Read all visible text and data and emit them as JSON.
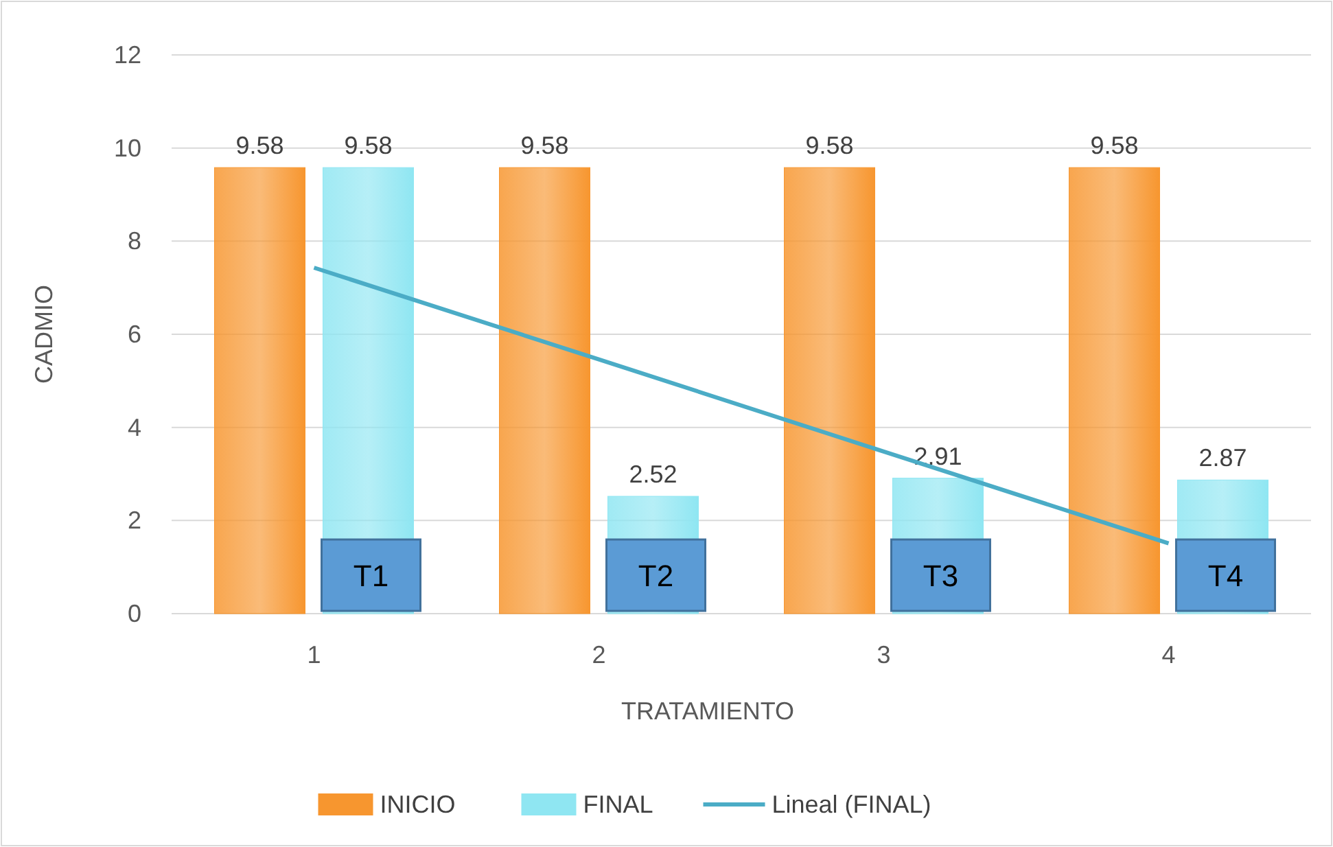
{
  "chart_data": {
    "type": "bar",
    "xlabel": "TRATAMIENTO",
    "ylabel": "CADMIO",
    "categories": [
      "1",
      "2",
      "3",
      "4"
    ],
    "series": [
      {
        "name": "INICIO",
        "color": "#f7962f",
        "values": [
          9.58,
          9.58,
          9.58,
          9.58
        ],
        "value_labels": [
          "9.58",
          "9.58",
          "9.58",
          "9.58"
        ]
      },
      {
        "name": "FINAL",
        "color": "#8fe6f2",
        "values": [
          9.58,
          2.52,
          2.91,
          2.87
        ],
        "value_labels": [
          "9.58",
          "2.52",
          "2.91",
          "2.87"
        ]
      },
      {
        "name": "Lineal (FINAL)",
        "type": "line",
        "color": "#4bacc6",
        "x": [
          "1",
          "2",
          "3",
          "4"
        ],
        "values": [
          7.43,
          5.46,
          3.48,
          1.51
        ]
      }
    ],
    "annotations": [
      "T1",
      "T2",
      "T3",
      "T4"
    ],
    "ylim": [
      0,
      12
    ],
    "yticks": [
      0,
      2,
      4,
      6,
      8,
      10,
      12
    ],
    "grid": "y",
    "legend": "bottom"
  }
}
